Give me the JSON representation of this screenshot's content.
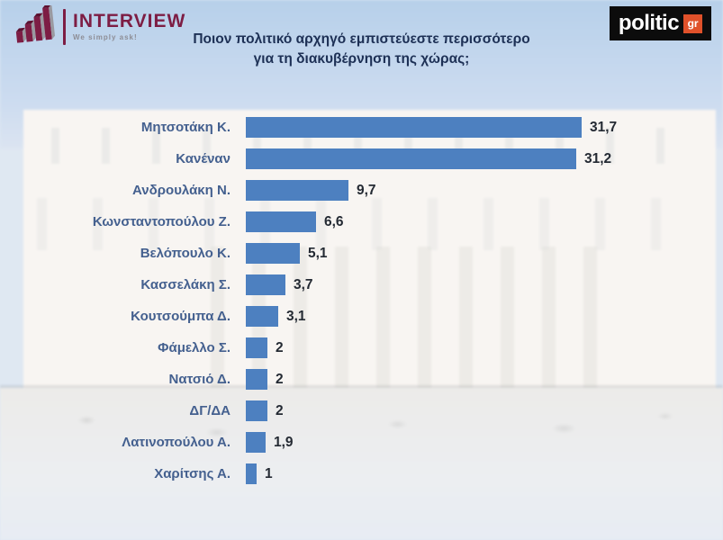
{
  "header": {
    "title_line1": "Ποιον πολιτικό αρχηγό εμπιστεύεστε περισσότερο",
    "title_line2": "για τη διακυβέρνηση της χώρας;",
    "interview_logo": {
      "name": "INTERVIEW",
      "tagline": "We simply ask!",
      "icon": "bar-chart-icon",
      "brand_color": "#7d1d44"
    },
    "politic_logo": {
      "name": "politic",
      "suffix": "gr",
      "bg_color": "#0c0c0c",
      "accent_color": "#e0512a"
    }
  },
  "chart_data": {
    "type": "bar",
    "orientation": "horizontal",
    "title": "Ποιον πολιτικό αρχηγό εμπιστεύεστε περισσότερο για τη διακυβέρνηση της χώρας;",
    "categories": [
      "Μητσοτάκη Κ.",
      "Κανέναν",
      "Ανδρουλάκη Ν.",
      "Κωνσταντοπούλου Ζ.",
      "Βελόπουλο Κ.",
      "Κασσελάκη Σ.",
      "Κουτσούμπα Δ.",
      "Φάμελλο Σ.",
      "Νατσιό Δ.",
      "ΔΓ/ΔΑ",
      "Λατινοπούλου Α.",
      "Χαρίτσης Α."
    ],
    "values": [
      31.7,
      31.2,
      9.7,
      6.6,
      5.1,
      3.7,
      3.1,
      2,
      2,
      2,
      1.9,
      1
    ],
    "value_labels": [
      "31,7",
      "31,2",
      "9,7",
      "6,6",
      "5,1",
      "3,7",
      "3,1",
      "2",
      "2",
      "2",
      "1,9",
      "1"
    ],
    "xlim": [
      0,
      34
    ],
    "grid": false,
    "legend": "none",
    "bar_color": "#4d80c0",
    "label_color": "#44608f",
    "value_color": "#242a33"
  }
}
